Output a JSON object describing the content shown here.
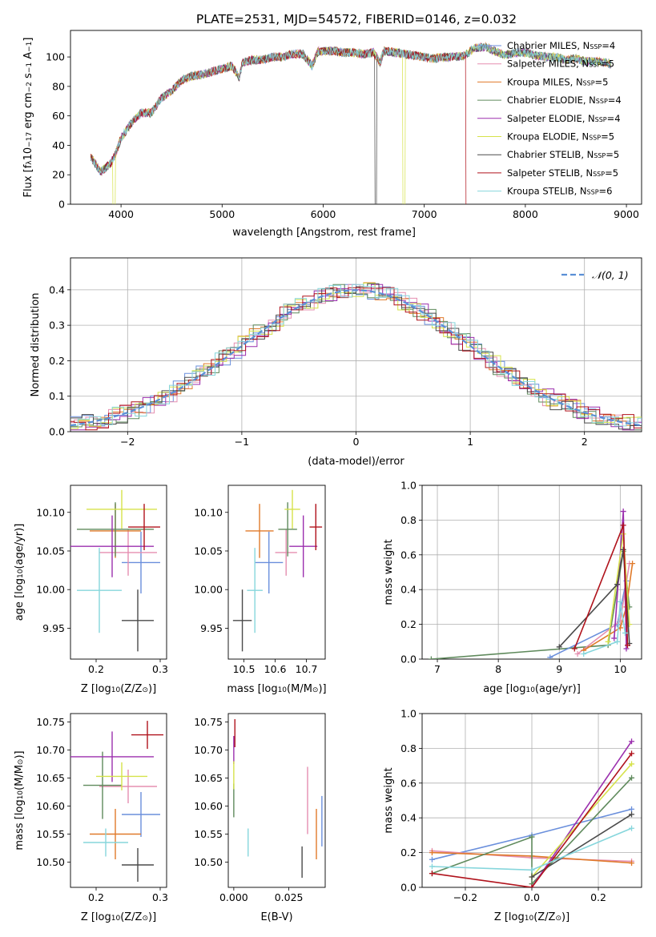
{
  "figure_title": "PLATE=2531, MJD=54572, FIBERID=0146, z=0.032",
  "colors": {
    "cM": "#6a8fdc",
    "sM": "#e58fb0",
    "kM": "#e07a2a",
    "cE": "#5f8a5c",
    "sE": "#9b2fae",
    "kE": "#d6e24a",
    "cS": "#4a4a4a",
    "sS": "#b0131c",
    "kS": "#86d6dc"
  },
  "chart_data": [
    {
      "id": "spectrum",
      "type": "line",
      "title": "PLATE=2531, MJD=54572, FIBERID=0146, z=0.032",
      "xlabel": "wavelength [Angstrom, rest frame]",
      "ylabel": "Flux [f",
      "xlim": [
        3500,
        9150
      ],
      "ylim": [
        0,
        118
      ],
      "xticks": [
        "4000",
        "5000",
        "6000",
        "7000",
        "8000",
        "9000"
      ],
      "yticks": [
        "0",
        "20",
        "40",
        "60",
        "80",
        "100"
      ],
      "grid": false,
      "legend_position": "right",
      "series": [
        {
          "name": "Chabrier MILES, N",
          "n": "4",
          "color_key": "cM"
        },
        {
          "name": "Salpeter MILES, N",
          "n": "5",
          "color_key": "sM"
        },
        {
          "name": "Kroupa MILES, N",
          "n": "5",
          "color_key": "kM"
        },
        {
          "name": "Chabrier ELODIE, N",
          "n": "4",
          "color_key": "cE"
        },
        {
          "name": "Salpeter ELODIE, N",
          "n": "4",
          "color_key": "sE"
        },
        {
          "name": "Kroupa ELODIE, N",
          "n": "5",
          "color_key": "kE"
        },
        {
          "name": "Chabrier STELIB, N",
          "n": "5",
          "color_key": "cS"
        },
        {
          "name": "Salpeter STELIB, N",
          "n": "5",
          "color_key": "sS"
        },
        {
          "name": "Kroupa STELIB, N",
          "n": "6",
          "color_key": "kS"
        }
      ],
      "continuum": [
        [
          3700,
          32
        ],
        [
          3800,
          22
        ],
        [
          3900,
          28
        ],
        [
          3950,
          35
        ],
        [
          4000,
          45
        ],
        [
          4100,
          55
        ],
        [
          4200,
          62
        ],
        [
          4300,
          62
        ],
        [
          4400,
          72
        ],
        [
          4500,
          77
        ],
        [
          4600,
          84
        ],
        [
          4700,
          87
        ],
        [
          4800,
          88
        ],
        [
          4900,
          90
        ],
        [
          5000,
          92
        ],
        [
          5100,
          94
        ],
        [
          5170,
          86
        ],
        [
          5200,
          96
        ],
        [
          5300,
          98
        ],
        [
          5400,
          98
        ],
        [
          5500,
          100
        ],
        [
          5600,
          100
        ],
        [
          5700,
          102
        ],
        [
          5800,
          102
        ],
        [
          5890,
          94
        ],
        [
          5950,
          104
        ],
        [
          6000,
          104
        ],
        [
          6100,
          104
        ],
        [
          6200,
          103
        ],
        [
          6300,
          103
        ],
        [
          6400,
          102
        ],
        [
          6500,
          103
        ],
        [
          6563,
          96
        ],
        [
          6600,
          104
        ],
        [
          6700,
          103
        ],
        [
          6800,
          102
        ],
        [
          6900,
          101
        ],
        [
          7000,
          100
        ],
        [
          7100,
          99
        ],
        [
          7200,
          100
        ],
        [
          7300,
          100
        ],
        [
          7400,
          101
        ],
        [
          7500,
          106
        ],
        [
          7600,
          107
        ],
        [
          7700,
          104
        ],
        [
          7800,
          101
        ],
        [
          7900,
          103
        ],
        [
          8000,
          103
        ],
        [
          8100,
          101
        ],
        [
          8200,
          100
        ],
        [
          8300,
          100
        ],
        [
          8400,
          98
        ],
        [
          8500,
          99
        ],
        [
          8600,
          97
        ],
        [
          8700,
          97
        ],
        [
          8800,
          96
        ],
        [
          8850,
          95
        ]
      ],
      "dropouts": [
        {
          "color_key": "kE",
          "x": 3930
        },
        {
          "color_key": "cS",
          "x": 6520
        },
        {
          "color_key": "kE",
          "x": 6800
        },
        {
          "color_key": "sS",
          "x": 7420
        }
      ]
    },
    {
      "id": "residuals",
      "type": "histogram",
      "xlabel": "(data-model)/error",
      "ylabel": "Normed distribution",
      "xlim": [
        -2.5,
        2.5
      ],
      "ylim": [
        0,
        0.49
      ],
      "xticks": [
        "−2",
        "−1",
        "0",
        "1",
        "2"
      ],
      "yticks": [
        "0.0",
        "0.1",
        "0.2",
        "0.3",
        "0.4"
      ],
      "grid": true,
      "legend_position": "upper right",
      "legend_label": "𝒩(0, 1)",
      "normal": {
        "mean": 0,
        "std": 1
      }
    },
    {
      "id": "age_vs_Z",
      "type": "errorbar",
      "xlabel": "Z [log",
      "ylabel": "age  [log",
      "xlim": [
        0.16,
        0.31
      ],
      "ylim": [
        9.91,
        10.135
      ],
      "xticks": [
        "0.2",
        "0.3"
      ],
      "yticks": [
        "9.95",
        "10.00",
        "10.05",
        "10.10"
      ],
      "points": [
        {
          "color_key": "cM",
          "x": 0.27,
          "xerr": 0.03,
          "y": 10.035,
          "yerr": 0.04
        },
        {
          "color_key": "sM",
          "x": 0.25,
          "xerr": 0.045,
          "y": 10.048,
          "yerr": 0.03
        },
        {
          "color_key": "kM",
          "x": 0.23,
          "xerr": 0.04,
          "y": 10.076,
          "yerr": 0.035
        },
        {
          "color_key": "cE",
          "x": 0.23,
          "xerr": 0.06,
          "y": 10.078,
          "yerr": 0.035
        },
        {
          "color_key": "sE",
          "x": 0.225,
          "xerr": 0.065,
          "y": 10.056,
          "yerr": 0.04
        },
        {
          "color_key": "kE",
          "x": 0.24,
          "xerr": 0.055,
          "y": 10.104,
          "yerr": 0.025
        },
        {
          "color_key": "cS",
          "x": 0.265,
          "xerr": 0.025,
          "y": 9.96,
          "yerr": 0.04
        },
        {
          "color_key": "sS",
          "x": 0.275,
          "xerr": 0.025,
          "y": 10.081,
          "yerr": 0.03
        },
        {
          "color_key": "kS",
          "x": 0.205,
          "xerr": 0.035,
          "y": 9.999,
          "yerr": 0.055
        }
      ]
    },
    {
      "id": "age_vs_mass",
      "type": "errorbar",
      "xlabel": "mass [log",
      "ylabel": "",
      "xlim": [
        10.45,
        10.76
      ],
      "ylim": [
        9.91,
        10.135
      ],
      "xticks": [
        "10.5",
        "10.6",
        "10.7"
      ],
      "yticks": [
        "9.95",
        "10.00",
        "10.05",
        "10.10"
      ],
      "points": [
        {
          "color_key": "cM",
          "x": 10.58,
          "xerr": 0.045,
          "y": 10.035,
          "yerr": 0.04
        },
        {
          "color_key": "sM",
          "x": 10.635,
          "xerr": 0.035,
          "y": 10.048,
          "yerr": 0.03
        },
        {
          "color_key": "kM",
          "x": 10.55,
          "xerr": 0.045,
          "y": 10.076,
          "yerr": 0.035
        },
        {
          "color_key": "cE",
          "x": 10.64,
          "xerr": 0.03,
          "y": 10.078,
          "yerr": 0.035
        },
        {
          "color_key": "sE",
          "x": 10.69,
          "xerr": 0.045,
          "y": 10.056,
          "yerr": 0.04
        },
        {
          "color_key": "kE",
          "x": 10.655,
          "xerr": 0.025,
          "y": 10.104,
          "yerr": 0.025
        },
        {
          "color_key": "cS",
          "x": 10.495,
          "xerr": 0.03,
          "y": 9.96,
          "yerr": 0.04
        },
        {
          "color_key": "sS",
          "x": 10.73,
          "xerr": 0.02,
          "y": 10.081,
          "yerr": 0.03
        },
        {
          "color_key": "kS",
          "x": 10.535,
          "xerr": 0.025,
          "y": 9.999,
          "yerr": 0.055
        }
      ]
    },
    {
      "id": "massweight_vs_age",
      "type": "line",
      "xlabel": "age  [log",
      "ylabel": "mass weight",
      "xlim": [
        6.75,
        10.35
      ],
      "ylim": [
        0,
        1.0
      ],
      "xticks": [
        "7",
        "8",
        "9",
        "10"
      ],
      "yticks": [
        "0.0",
        "0.2",
        "0.4",
        "0.6",
        "0.8",
        "1.0"
      ],
      "grid": true,
      "series": [
        {
          "color_key": "cE",
          "points": [
            [
              6.9,
              0.0
            ],
            [
              9.8,
              0.08
            ],
            [
              10.05,
              0.62
            ],
            [
              10.15,
              0.3
            ]
          ]
        },
        {
          "color_key": "cM",
          "points": [
            [
              8.85,
              0.01
            ],
            [
              9.95,
              0.2
            ],
            [
              10.1,
              0.45
            ]
          ]
        },
        {
          "color_key": "sM",
          "points": [
            [
              9.3,
              0.03
            ],
            [
              10.0,
              0.22
            ],
            [
              10.15,
              0.55
            ]
          ]
        },
        {
          "color_key": "kM",
          "points": [
            [
              9.4,
              0.05
            ],
            [
              10.0,
              0.18
            ],
            [
              10.1,
              0.3
            ],
            [
              10.2,
              0.55
            ]
          ]
        },
        {
          "color_key": "sE",
          "points": [
            [
              9.9,
              0.12
            ],
            [
              10.05,
              0.85
            ],
            [
              10.1,
              0.06
            ]
          ]
        },
        {
          "color_key": "kE",
          "points": [
            [
              9.8,
              0.1
            ],
            [
              10.05,
              0.72
            ],
            [
              10.15,
              0.2
            ]
          ]
        },
        {
          "color_key": "cS",
          "points": [
            [
              9.0,
              0.07
            ],
            [
              9.95,
              0.43
            ],
            [
              10.05,
              0.63
            ],
            [
              10.15,
              0.09
            ]
          ]
        },
        {
          "color_key": "sS",
          "points": [
            [
              9.25,
              0.06
            ],
            [
              10.05,
              0.77
            ],
            [
              10.12,
              0.08
            ]
          ]
        },
        {
          "color_key": "kS",
          "points": [
            [
              9.4,
              0.03
            ],
            [
              9.95,
              0.1
            ],
            [
              10.0,
              0.33
            ],
            [
              10.08,
              0.15
            ]
          ]
        }
      ]
    },
    {
      "id": "mass_vs_Z",
      "type": "errorbar",
      "xlabel": "Z [log",
      "ylabel": "mass [log",
      "xlim": [
        0.16,
        0.31
      ],
      "ylim": [
        10.455,
        10.765
      ],
      "xticks": [
        "0.2",
        "0.3"
      ],
      "yticks": [
        "10.50",
        "10.55",
        "10.60",
        "10.65",
        "10.70",
        "10.75"
      ],
      "points": [
        {
          "color_key": "cM",
          "x": 0.27,
          "xerr": 0.03,
          "y": 10.585,
          "yerr": 0.04
        },
        {
          "color_key": "sM",
          "x": 0.25,
          "xerr": 0.045,
          "y": 10.635,
          "yerr": 0.03
        },
        {
          "color_key": "kM",
          "x": 0.23,
          "xerr": 0.04,
          "y": 10.55,
          "yerr": 0.045
        },
        {
          "color_key": "cE",
          "x": 0.21,
          "xerr": 0.03,
          "y": 10.637,
          "yerr": 0.06
        },
        {
          "color_key": "sE",
          "x": 0.225,
          "xerr": 0.065,
          "y": 10.688,
          "yerr": 0.045
        },
        {
          "color_key": "kE",
          "x": 0.24,
          "xerr": 0.04,
          "y": 10.653,
          "yerr": 0.025
        },
        {
          "color_key": "cS",
          "x": 0.265,
          "xerr": 0.025,
          "y": 10.495,
          "yerr": 0.03
        },
        {
          "color_key": "sS",
          "x": 0.28,
          "xerr": 0.025,
          "y": 10.727,
          "yerr": 0.025
        },
        {
          "color_key": "kS",
          "x": 0.215,
          "xerr": 0.035,
          "y": 10.535,
          "yerr": 0.025
        }
      ]
    },
    {
      "id": "mass_vs_EBV",
      "type": "errorbar",
      "xlabel": "E(B-V)",
      "ylabel": "",
      "xlim": [
        -0.0025,
        0.0415
      ],
      "ylim": [
        10.455,
        10.765
      ],
      "xticks": [
        "0.000",
        "0.025"
      ],
      "yticks": [
        "10.50",
        "10.55",
        "10.60",
        "10.65",
        "10.70",
        "10.75"
      ],
      "points": [
        {
          "color_key": "cM",
          "x": 0.04,
          "xerr": 0,
          "y": 10.573,
          "yerr": 0.045
        },
        {
          "color_key": "sM",
          "x": 0.0335,
          "xerr": 0,
          "y": 10.61,
          "yerr": 0.06
        },
        {
          "color_key": "kM",
          "x": 0.0375,
          "xerr": 0,
          "y": 10.55,
          "yerr": 0.045
        },
        {
          "color_key": "cE",
          "x": 0.0,
          "xerr": 0,
          "y": 10.61,
          "yerr": 0.03
        },
        {
          "color_key": "sE",
          "x": 0.0,
          "xerr": 0,
          "y": 10.7,
          "yerr": 0.025
        },
        {
          "color_key": "kE",
          "x": 0.0,
          "xerr": 0,
          "y": 10.655,
          "yerr": 0.025
        },
        {
          "color_key": "cS",
          "x": 0.031,
          "xerr": 0,
          "y": 10.5,
          "yerr": 0.028
        },
        {
          "color_key": "sS",
          "x": 0.0005,
          "xerr": 0,
          "y": 10.73,
          "yerr": 0.025
        },
        {
          "color_key": "kS",
          "x": 0.0065,
          "xerr": 0,
          "y": 10.535,
          "yerr": 0.025
        }
      ]
    },
    {
      "id": "massweight_vs_Z",
      "type": "line",
      "xlabel": "Z [log",
      "ylabel": "mass weight",
      "xlim": [
        -0.33,
        0.33
      ],
      "ylim": [
        0,
        1.0
      ],
      "xticks": [
        "−0.2",
        "0.0",
        "0.2"
      ],
      "yticks": [
        "0.0",
        "0.2",
        "0.4",
        "0.6",
        "0.8",
        "1.0"
      ],
      "grid": true,
      "series": [
        {
          "color_key": "cM",
          "points": [
            [
              -0.3,
              0.16
            ],
            [
              0.0,
              0.3
            ],
            [
              0.3,
              0.45
            ]
          ]
        },
        {
          "color_key": "sM",
          "points": [
            [
              -0.3,
              0.21
            ],
            [
              0.0,
              0.17
            ],
            [
              0.3,
              0.15
            ]
          ]
        },
        {
          "color_key": "kM",
          "points": [
            [
              -0.3,
              0.2
            ],
            [
              0.0,
              0.18
            ],
            [
              0.3,
              0.14
            ]
          ]
        },
        {
          "color_key": "cE",
          "points": [
            [
              -0.3,
              0.08
            ],
            [
              0.0,
              0.29
            ],
            [
              0.0,
              0.02
            ],
            [
              0.3,
              0.63
            ]
          ]
        },
        {
          "color_key": "sE",
          "points": [
            [
              0.0,
              0.0
            ],
            [
              0.3,
              0.84
            ]
          ]
        },
        {
          "color_key": "kE",
          "points": [
            [
              0.0,
              0.06
            ],
            [
              0.3,
              0.71
            ]
          ]
        },
        {
          "color_key": "cS",
          "points": [
            [
              0.0,
              0.06
            ],
            [
              0.3,
              0.42
            ]
          ]
        },
        {
          "color_key": "sS",
          "points": [
            [
              -0.3,
              0.08
            ],
            [
              0.0,
              0.0
            ],
            [
              0.3,
              0.77
            ]
          ]
        },
        {
          "color_key": "kS",
          "points": [
            [
              -0.3,
              0.12
            ],
            [
              0.0,
              0.1
            ],
            [
              0.3,
              0.34
            ]
          ]
        }
      ]
    }
  ]
}
